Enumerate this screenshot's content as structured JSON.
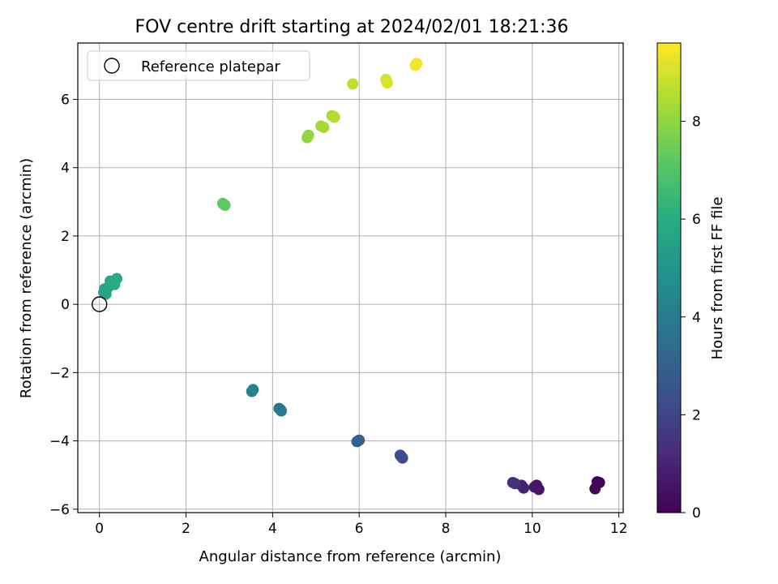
{
  "chart_data": {
    "type": "scatter",
    "title": "FOV centre drift starting at 2024/02/01 18:21:36",
    "xlabel": "Angular distance from reference (arcmin)",
    "ylabel": "Rotation from reference (arcmin)",
    "xlim": [
      -0.5,
      12.1
    ],
    "ylim": [
      -6.1,
      7.65
    ],
    "xticks": [
      0,
      2,
      4,
      6,
      8,
      10,
      12
    ],
    "xtick_labels": [
      "0",
      "2",
      "4",
      "6",
      "8",
      "10",
      "12"
    ],
    "yticks": [
      -6,
      -4,
      -2,
      0,
      2,
      4,
      6
    ],
    "ytick_labels": [
      "−6",
      "−4",
      "−2",
      "0",
      "2",
      "4",
      "6"
    ],
    "grid": true,
    "legend": {
      "placement": "top-left",
      "entries": [
        "Reference platepar"
      ]
    },
    "reference_point": {
      "x": 0,
      "y": 0
    },
    "colorbar": {
      "label": "Hours from first FF file",
      "range": [
        0,
        9.6
      ],
      "ticks": [
        0,
        2,
        4,
        6,
        8
      ],
      "tick_labels": [
        "0",
        "2",
        "4",
        "6",
        "8"
      ],
      "colormap": "viridis"
    },
    "points": [
      {
        "x": 11.5,
        "y": -5.2,
        "h": 0.0
      },
      {
        "x": 11.45,
        "y": -5.4,
        "h": 0.1
      },
      {
        "x": 11.55,
        "y": -5.22,
        "h": 0.15
      },
      {
        "x": 10.1,
        "y": -5.3,
        "h": 0.5
      },
      {
        "x": 10.15,
        "y": -5.42,
        "h": 0.55
      },
      {
        "x": 10.05,
        "y": -5.35,
        "h": 0.6
      },
      {
        "x": 9.75,
        "y": -5.3,
        "h": 0.9
      },
      {
        "x": 9.8,
        "y": -5.38,
        "h": 0.95
      },
      {
        "x": 9.55,
        "y": -5.22,
        "h": 1.2
      },
      {
        "x": 9.6,
        "y": -5.25,
        "h": 1.25
      },
      {
        "x": 6.97,
        "y": -4.45,
        "h": 2.2
      },
      {
        "x": 7.0,
        "y": -4.5,
        "h": 2.25
      },
      {
        "x": 6.95,
        "y": -4.42,
        "h": 2.3
      },
      {
        "x": 5.95,
        "y": -4.02,
        "h": 3.0
      },
      {
        "x": 6.0,
        "y": -3.98,
        "h": 3.05
      },
      {
        "x": 4.15,
        "y": -3.05,
        "h": 3.8
      },
      {
        "x": 4.2,
        "y": -3.12,
        "h": 3.85
      },
      {
        "x": 4.18,
        "y": -3.08,
        "h": 3.9
      },
      {
        "x": 3.55,
        "y": -2.5,
        "h": 4.2
      },
      {
        "x": 3.52,
        "y": -2.55,
        "h": 4.25
      },
      {
        "x": 0.1,
        "y": 0.35,
        "h": 5.6
      },
      {
        "x": 0.15,
        "y": 0.3,
        "h": 5.65
      },
      {
        "x": 0.12,
        "y": 0.45,
        "h": 5.7
      },
      {
        "x": 0.2,
        "y": 0.5,
        "h": 5.75
      },
      {
        "x": 0.25,
        "y": 0.68,
        "h": 5.8
      },
      {
        "x": 0.3,
        "y": 0.62,
        "h": 5.85
      },
      {
        "x": 0.35,
        "y": 0.58,
        "h": 5.9
      },
      {
        "x": 0.4,
        "y": 0.75,
        "h": 5.95
      },
      {
        "x": 2.85,
        "y": 2.95,
        "h": 7.2
      },
      {
        "x": 2.9,
        "y": 2.9,
        "h": 7.25
      },
      {
        "x": 4.8,
        "y": 4.88,
        "h": 8.0
      },
      {
        "x": 4.83,
        "y": 4.95,
        "h": 8.05
      },
      {
        "x": 5.12,
        "y": 5.22,
        "h": 8.3
      },
      {
        "x": 5.18,
        "y": 5.18,
        "h": 8.35
      },
      {
        "x": 5.37,
        "y": 5.52,
        "h": 8.5
      },
      {
        "x": 5.43,
        "y": 5.48,
        "h": 8.55
      },
      {
        "x": 5.85,
        "y": 6.45,
        "h": 8.7
      },
      {
        "x": 6.62,
        "y": 6.58,
        "h": 9.0
      },
      {
        "x": 6.65,
        "y": 6.48,
        "h": 9.05
      },
      {
        "x": 7.3,
        "y": 7.0,
        "h": 9.4
      },
      {
        "x": 7.33,
        "y": 7.05,
        "h": 9.45
      }
    ]
  }
}
